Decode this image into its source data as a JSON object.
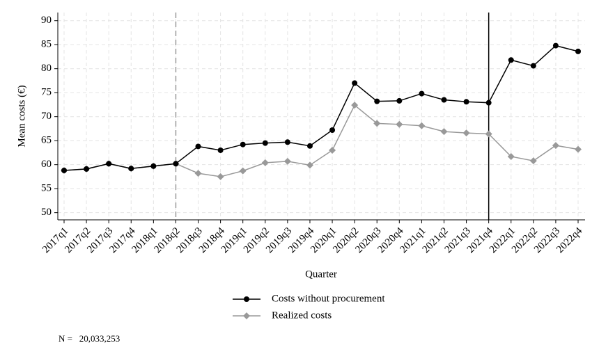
{
  "chart_data": {
    "type": "line",
    "ylabel": "Mean costs (€)",
    "xlabel": "Quarter",
    "categories": [
      "2017q1",
      "2017q2",
      "2017q3",
      "2017q4",
      "2018q1",
      "2018q2",
      "2018q3",
      "2018q4",
      "2019q1",
      "2019q2",
      "2019q3",
      "2019q4",
      "2020q1",
      "2020q2",
      "2020q3",
      "2020q4",
      "2021q1",
      "2021q2",
      "2021q3",
      "2021q4",
      "2022q1",
      "2022q2",
      "2022q3",
      "2022q4"
    ],
    "series": [
      {
        "name": "Costs without procurement",
        "color": "#000000",
        "marker": "circle",
        "values": [
          58.8,
          59.1,
          60.2,
          59.2,
          59.7,
          60.2,
          63.8,
          63.0,
          64.2,
          64.5,
          64.7,
          63.9,
          67.2,
          77.0,
          73.2,
          73.3,
          74.8,
          73.5,
          73.1,
          72.9,
          81.8,
          80.6,
          84.8,
          83.6
        ]
      },
      {
        "name": "Realized costs",
        "color": "#999999",
        "marker": "diamond",
        "values": [
          58.8,
          59.1,
          60.2,
          59.2,
          59.7,
          60.2,
          58.2,
          57.5,
          58.7,
          60.4,
          60.7,
          59.9,
          63.0,
          72.4,
          68.6,
          68.4,
          68.1,
          66.9,
          66.6,
          66.4,
          61.7,
          60.8,
          64.0,
          63.2
        ]
      }
    ],
    "ylim": [
      48.5,
      91.7
    ],
    "yticks": [
      50,
      55,
      60,
      65,
      70,
      75,
      80,
      85,
      90
    ],
    "grid": true,
    "vlines": [
      {
        "at": "2018q2",
        "style": "dashed",
        "color": "#999999"
      },
      {
        "at": "2021q4",
        "style": "solid",
        "color": "#000000"
      }
    ],
    "legend": "bottom",
    "note": "N =   20,033,253"
  }
}
